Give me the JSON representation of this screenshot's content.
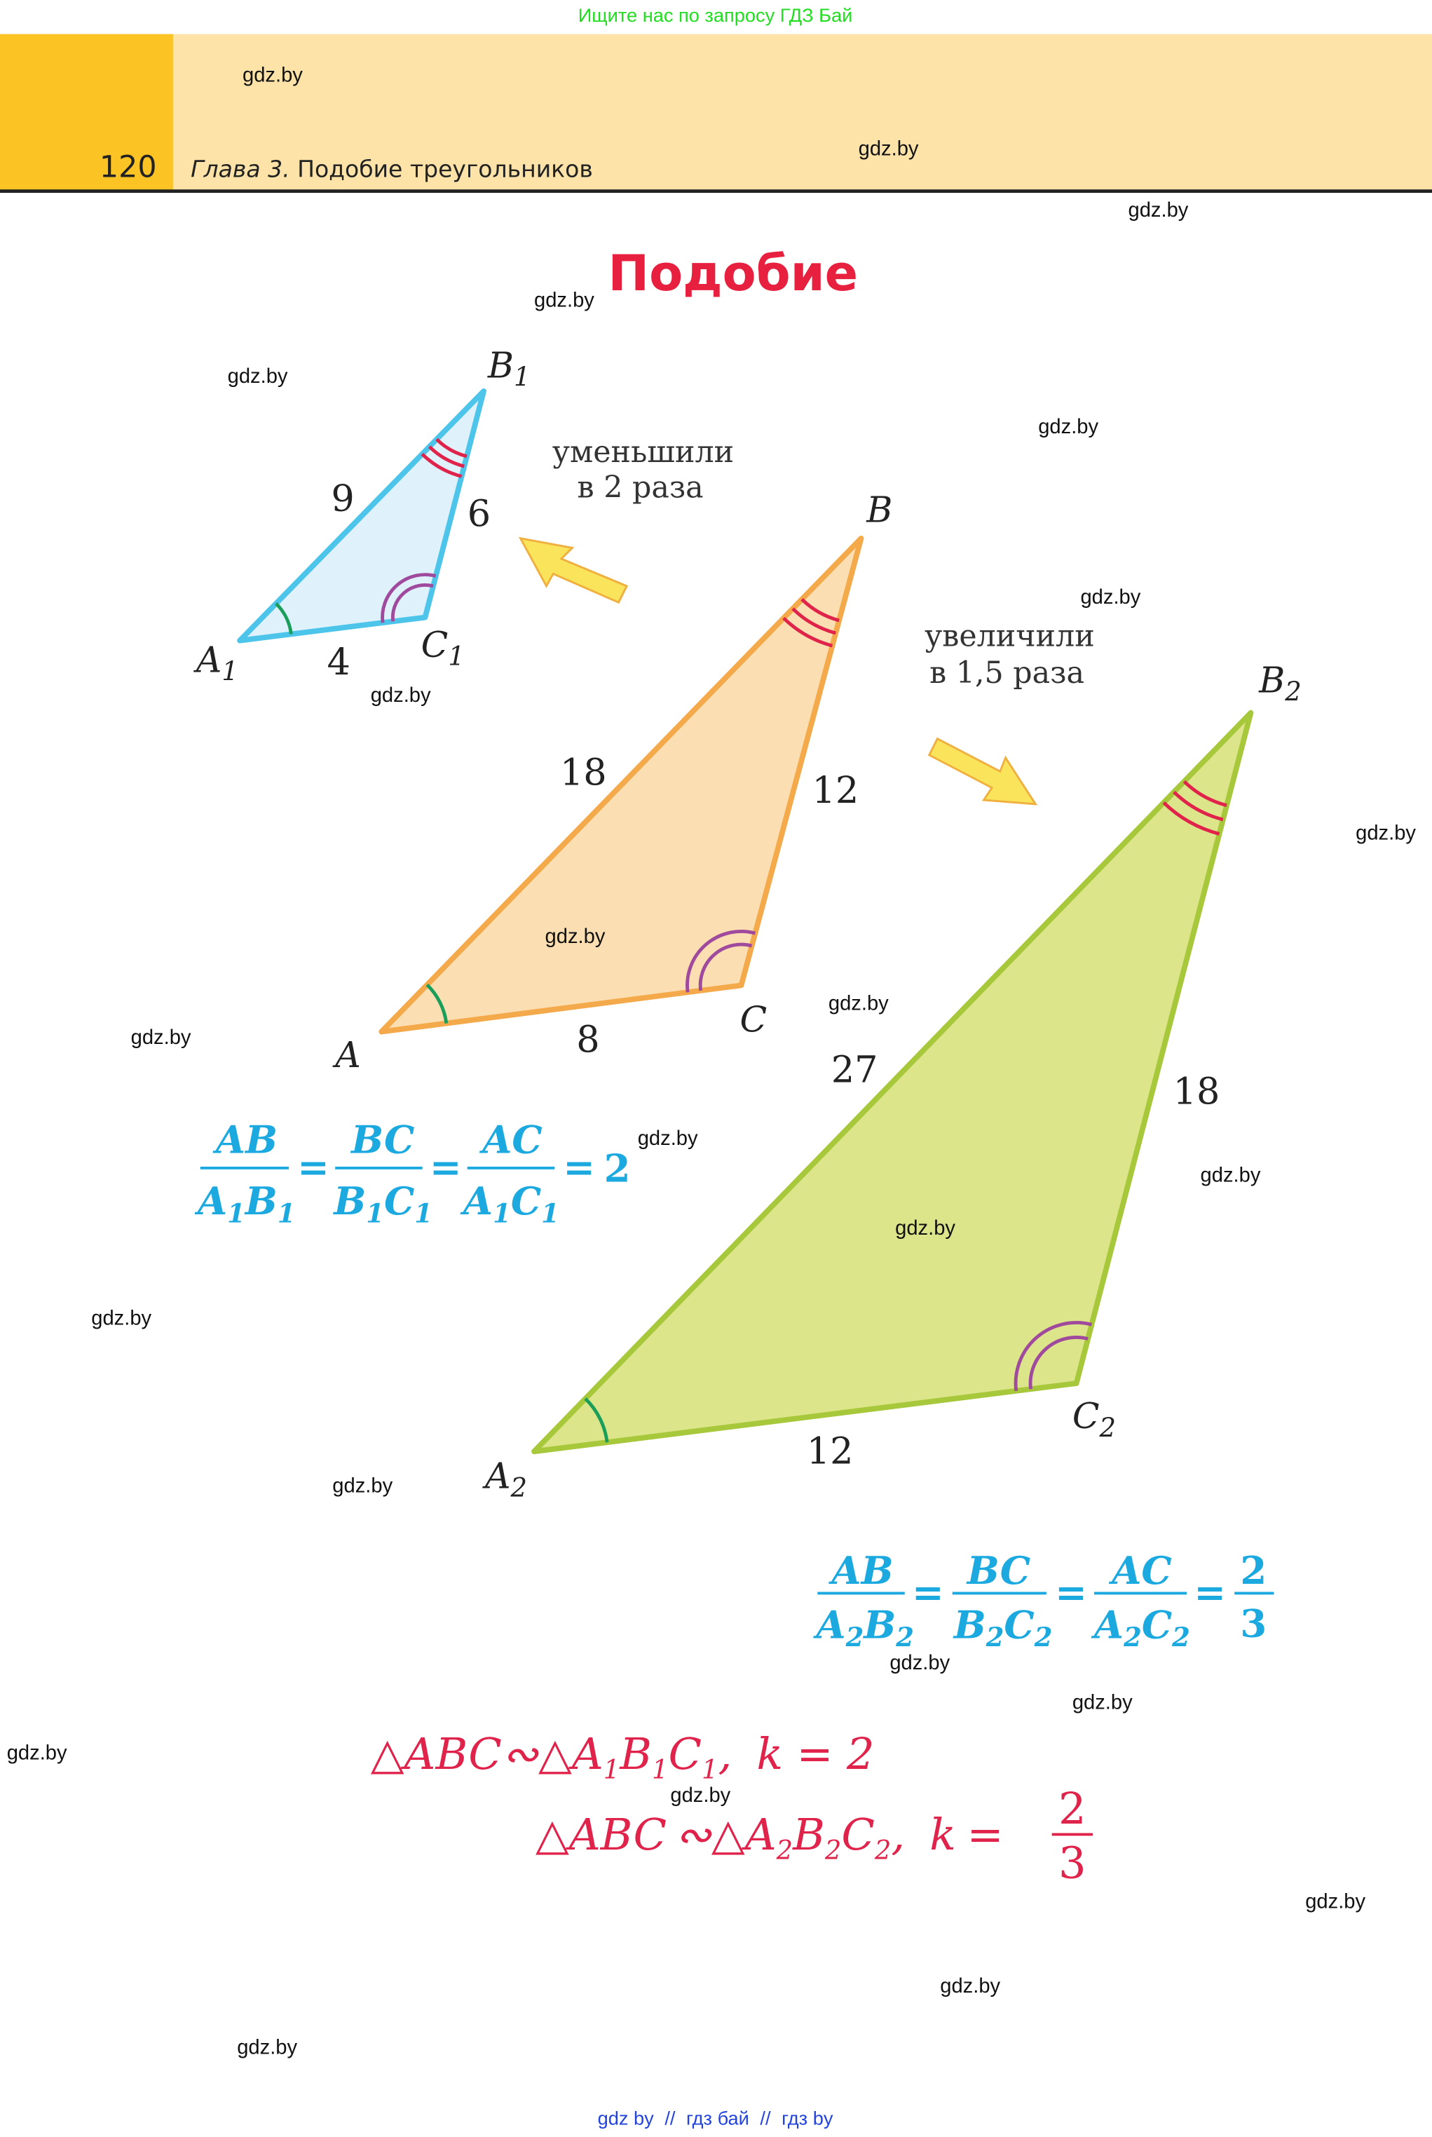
{
  "top_banner": "Ищите нас по запросу ГДЗ Бай",
  "header": {
    "page_number": "120",
    "chapter_label": "Глава 3.",
    "chapter_title": " Подобие треугольников"
  },
  "title": "Подобие",
  "watermark": "gdz.by",
  "footer": {
    "links": [
      "gdz by",
      "гдз бай",
      "гдз by"
    ],
    "separator": "//"
  },
  "colors": {
    "header_dark": "#fbc324",
    "header_light": "#fde3a7",
    "small_fill": "#dff1fb",
    "small_stroke": "#4dc4ea",
    "mid_fill": "#fbdfb2",
    "mid_stroke": "#f4a94a",
    "big_fill": "#dde58a",
    "big_stroke": "#a8c83c",
    "ratio": "#1ba9e0",
    "conclusion": "#e0234a",
    "title": "#e8203f"
  },
  "triangles": {
    "small": {
      "A": "A",
      "B": "B",
      "C": "C",
      "sub": "1",
      "AB": "9",
      "BC": "6",
      "AC": "4"
    },
    "middle": {
      "A": "A",
      "B": "B",
      "C": "C",
      "AB": "18",
      "BC": "12",
      "AC": "8"
    },
    "large": {
      "A": "A",
      "B": "B",
      "C": "C",
      "sub": "2",
      "AB": "27",
      "BC": "18",
      "AC": "12"
    }
  },
  "notes": {
    "reduced_1": "уменьшили",
    "reduced_2": "в 2 раза",
    "enlarged_1": "увеличили",
    "enlarged_2": "в 1,5 раза"
  },
  "ratios1": {
    "n1": "AB",
    "n2": "BC",
    "n3": "AC",
    "d1a": "A",
    "d1b": "B",
    "d2a": "B",
    "d2b": "C",
    "d3a": "A",
    "d3b": "C",
    "sub": "1",
    "eq": "=",
    "value": "2"
  },
  "ratios2": {
    "n1": "AB",
    "n2": "BC",
    "n3": "AC",
    "d1a": "A",
    "d1b": "B",
    "d2a": "B",
    "d2b": "C",
    "d3a": "A",
    "d3b": "C",
    "sub": "2",
    "eq": "=",
    "value_num": "2",
    "value_den": "3"
  },
  "conclusions": {
    "line1": {
      "tri": "△ABC",
      "sim": "∾",
      "tri2a": "△A",
      "b": "B",
      "c": "C",
      "sub": "1",
      "comma": ",",
      "k": "k",
      "eq": "=",
      "value": "2"
    },
    "line2": {
      "tri": "△ABC",
      "sim": "∾",
      "tri2a": "△A",
      "b": "B",
      "c": "C",
      "sub": "2",
      "comma": ",",
      "k": "k",
      "eq": "=",
      "num": "2",
      "den": "3"
    }
  }
}
